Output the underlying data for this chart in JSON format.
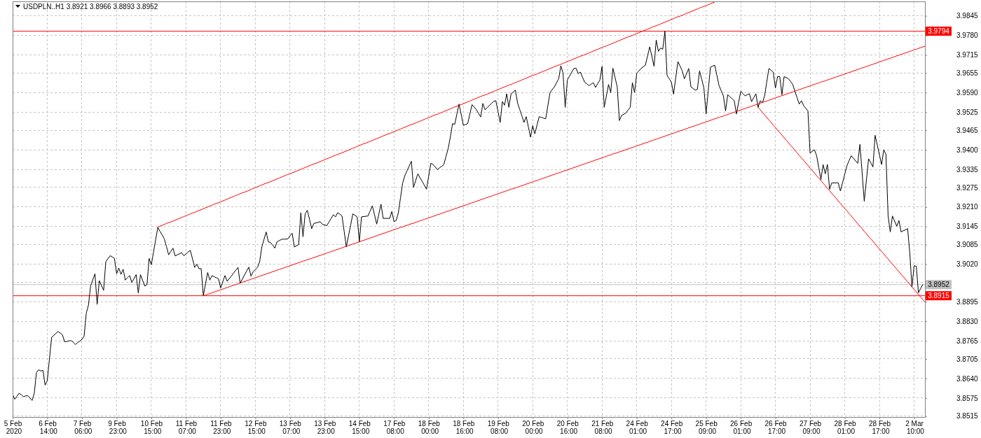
{
  "chart_data": {
    "type": "line",
    "title": "USDPLN..H1 3.8921 3.8966 3.8893 3.8952",
    "categories": [
      "5 Feb 2020",
      null,
      null,
      null,
      null,
      null,
      null,
      null,
      null,
      null,
      null,
      null,
      null,
      null,
      null,
      null,
      "6 Feb 14:00",
      null,
      null,
      null,
      null,
      null,
      null,
      null,
      null,
      null,
      null,
      null,
      null,
      null,
      null,
      null,
      "7 Feb 06:00",
      null,
      null,
      null,
      null,
      null,
      null,
      null,
      null,
      null,
      null,
      null,
      null,
      null,
      null,
      null,
      "9 Feb 23:00",
      null,
      null,
      null,
      null,
      null,
      null,
      null,
      null,
      null,
      null,
      null,
      null,
      null,
      null,
      null,
      "10 Feb 15:00",
      null,
      null,
      null,
      null,
      null,
      null,
      null,
      null,
      null,
      null,
      null,
      null,
      null,
      null,
      null,
      "11 Feb 07:00",
      null,
      null,
      null,
      null,
      null,
      null,
      null,
      null,
      null,
      null,
      null,
      null,
      null,
      null,
      null,
      "11 Feb 23:00",
      null,
      null,
      null,
      null,
      null,
      null,
      null,
      null,
      null,
      null,
      null,
      null,
      null,
      null,
      null,
      "12 Feb 15:00",
      null,
      null,
      null,
      null,
      null,
      null,
      null,
      null,
      null,
      null,
      null,
      null,
      null,
      null,
      null,
      "13 Feb 07:00",
      null,
      null,
      null,
      null,
      null,
      null,
      null,
      null,
      null,
      null,
      null,
      null,
      null,
      null,
      null,
      "13 Feb 23:00",
      null,
      null,
      null,
      null,
      null,
      null,
      null,
      null,
      null,
      null,
      null,
      null,
      null,
      null,
      null,
      "14 Feb 15:00",
      null,
      null,
      null,
      null,
      null,
      null,
      null,
      null,
      null,
      null,
      null,
      null,
      null,
      null,
      null,
      "17 Feb 08:00",
      null,
      null,
      null,
      null,
      null,
      null,
      null,
      null,
      null,
      null,
      null,
      null,
      null,
      null,
      null,
      "18 Feb 00:00",
      null,
      null,
      null,
      null,
      null,
      null,
      null,
      null,
      null,
      null,
      null,
      null,
      null,
      null,
      null,
      "18 Feb 16:00",
      null,
      null,
      null,
      null,
      null,
      null,
      null,
      null,
      null,
      null,
      null,
      null,
      null,
      null,
      null,
      "19 Feb 08:00",
      null,
      null,
      null,
      null,
      null,
      null,
      null,
      null,
      null,
      null,
      null,
      null,
      null,
      null,
      null,
      "20 Feb 00:00",
      null,
      null,
      null,
      null,
      null,
      null,
      null,
      null,
      null,
      null,
      null,
      null,
      null,
      null,
      null,
      "20 Feb 16:00",
      null,
      null,
      null,
      null,
      null,
      null,
      null,
      null,
      null,
      null,
      null,
      null,
      null,
      null,
      null,
      "21 Feb 08:00",
      null,
      null,
      null,
      null,
      null,
      null,
      null,
      null,
      null,
      null,
      null,
      null,
      null,
      null,
      null,
      "24 Feb 01:00",
      null,
      null,
      null,
      null,
      null,
      null,
      null,
      null,
      null,
      null,
      null,
      null,
      null,
      null,
      null,
      "24 Feb 17:00",
      null,
      null,
      null,
      null,
      null,
      null,
      null,
      null,
      null,
      null,
      null,
      null,
      null,
      null,
      null,
      "25 Feb 09:00",
      null,
      null,
      null,
      null,
      null,
      null,
      null,
      null,
      null,
      null,
      null,
      null,
      null,
      null,
      null,
      "26 Feb 01:00",
      null,
      null,
      null,
      null,
      null,
      null,
      null,
      null,
      null,
      null,
      null,
      null,
      null,
      null,
      null,
      "26 Feb 17:00",
      null,
      null,
      null,
      null,
      null,
      null,
      null,
      null,
      null,
      null,
      null,
      null,
      null,
      null,
      null,
      "27 Feb 09:00",
      null,
      null,
      null,
      null,
      null,
      null,
      null,
      null,
      null,
      null,
      null,
      null,
      null,
      null,
      null,
      "28 Feb 01:00",
      null,
      null,
      null,
      null,
      null,
      null,
      null,
      null,
      null,
      null,
      null,
      null,
      null,
      null,
      null,
      "28 Feb 17:00",
      null,
      null,
      null,
      null,
      null,
      null,
      null,
      null,
      null,
      null,
      null,
      null,
      null,
      null,
      null,
      "2 Mar 10:00",
      null,
      null,
      null,
      null,
      null
    ],
    "ylim": [
      3.8512,
      3.9893
    ],
    "yticks": [
      3.8515,
      3.8575,
      {
        "value": 3.864,
        "label": "3.8640"
      },
      3.8705,
      3.8765,
      {
        "value": 3.883,
        "label": "3.8830"
      },
      3.8895,
      {
        "value": 3.896,
        "label": null
      },
      {
        "value": 3.902,
        "label": "3.9020"
      },
      3.9085,
      3.9145,
      {
        "value": 3.921,
        "label": "3.9210"
      },
      3.9275,
      3.9335,
      {
        "value": 3.94,
        "label": "3.9400"
      },
      3.9465,
      3.9525,
      {
        "value": 3.959,
        "label": "3.9590"
      },
      3.9655,
      3.9715,
      {
        "value": 3.978,
        "label": "3.9780"
      },
      3.9845
    ],
    "grid": true,
    "series": [
      {
        "color": "#000000",
        "values": [
          3.8587,
          3.8571,
          3.8581,
          3.8591,
          3.8586,
          3.858,
          3.8582,
          3.8583,
          3.8575,
          3.8567,
          3.8591,
          3.866,
          3.8669,
          3.8665,
          3.8667,
          3.8618,
          3.8633,
          3.8705,
          3.8777,
          3.8783,
          3.879,
          3.8796,
          3.8791,
          3.8785,
          3.8762,
          3.8763,
          3.8765,
          3.8766,
          3.876,
          3.8753,
          3.8759,
          3.8764,
          3.877,
          3.8781,
          3.8857,
          3.8884,
          3.8948,
          3.8968,
          3.8988,
          3.8886,
          3.8965,
          3.8949,
          3.8933,
          3.9028,
          3.9038,
          3.9048,
          3.9044,
          3.9039,
          3.8988,
          3.9007,
          3.8986,
          3.9003,
          3.8967,
          3.8975,
          3.8982,
          3.8959,
          3.8972,
          3.8985,
          3.8924,
          3.8985,
          3.8966,
          3.8947,
          3.8952,
          3.9039,
          3.9018,
          3.9059,
          3.9101,
          3.9142,
          3.9129,
          3.9117,
          3.9104,
          3.9078,
          3.9051,
          3.9062,
          3.9073,
          3.9047,
          3.9051,
          3.9054,
          3.9058,
          3.9048,
          3.9054,
          3.906,
          3.9066,
          3.9038,
          3.9009,
          3.902,
          3.9005,
          3.9005,
          3.8915,
          3.8954,
          3.8992,
          3.8967,
          3.8982,
          3.8978,
          3.8975,
          3.8971,
          3.8941,
          3.8962,
          3.8982,
          3.8963,
          3.8972,
          3.8981,
          3.8991,
          3.9,
          3.9009,
          3.8957,
          3.897,
          3.8984,
          3.8997,
          3.901,
          3.898,
          3.8995,
          3.9002,
          3.9009,
          3.9028,
          3.9077,
          3.9102,
          3.9127,
          3.9094,
          3.9092,
          3.9083,
          3.9073,
          3.9094,
          3.9098,
          3.9102,
          3.9103,
          3.9103,
          3.9104,
          3.9114,
          3.9123,
          3.9077,
          3.9081,
          3.9085,
          3.9191,
          3.9111,
          3.9187,
          3.9199,
          3.9169,
          3.9138,
          3.9155,
          3.9157,
          3.9159,
          3.9161,
          3.9152,
          3.915,
          3.9148,
          3.916,
          3.9172,
          3.9184,
          3.9177,
          3.9191,
          3.9186,
          3.918,
          3.9129,
          3.9077,
          3.9114,
          3.915,
          3.9187,
          3.9182,
          3.9177,
          3.9094,
          3.9177,
          3.9178,
          3.9179,
          3.918,
          3.9197,
          3.9214,
          3.9184,
          3.9153,
          3.9186,
          3.9219,
          3.9172,
          3.9172,
          3.9172,
          3.9172,
          3.9195,
          3.9161,
          3.9165,
          3.9191,
          3.9241,
          3.929,
          3.9314,
          3.933,
          3.9346,
          3.9362,
          3.9275,
          3.9298,
          3.932,
          3.9307,
          3.9295,
          3.9282,
          3.9269,
          3.9312,
          3.9355,
          3.9351,
          3.9343,
          3.9334,
          3.934,
          3.9345,
          3.9351,
          3.9378,
          3.9404,
          3.9442,
          3.9487,
          3.9484,
          3.9518,
          3.9552,
          3.9517,
          3.9481,
          3.9484,
          3.9487,
          3.9519,
          3.955,
          3.9542,
          3.9533,
          3.9521,
          3.9509,
          3.9554,
          3.9533,
          3.954,
          3.9547,
          3.9554,
          3.9561,
          3.9563,
          3.9527,
          3.9491,
          3.956,
          3.9548,
          3.9586,
          3.9541,
          3.9586,
          3.9592,
          3.9598,
          3.9556,
          3.9534,
          3.9513,
          3.9491,
          3.951,
          3.9476,
          3.9442,
          3.948,
          3.9453,
          3.9482,
          3.951,
          3.9508,
          3.9505,
          3.9503,
          3.9547,
          3.959,
          3.96,
          3.9609,
          3.9623,
          3.9636,
          3.9679,
          3.9654,
          3.9541,
          3.9632,
          3.9645,
          3.9658,
          3.967,
          3.9671,
          3.9653,
          3.9658,
          3.9641,
          3.9624,
          3.9619,
          3.9613,
          3.9618,
          3.9623,
          3.9607,
          3.962,
          3.9632,
          3.9677,
          3.9541,
          3.9579,
          3.9617,
          3.959,
          3.9671,
          3.964,
          3.9609,
          3.9497,
          3.9514,
          3.9518,
          3.9522,
          3.9532,
          3.9541,
          3.9623,
          3.959,
          3.9654,
          3.9662,
          3.967,
          3.9676,
          3.9681,
          3.9712,
          3.9742,
          3.971,
          3.9677,
          3.9765,
          3.9727,
          3.9738,
          3.9734,
          3.9794,
          3.9647,
          3.9636,
          3.9624,
          3.9585,
          3.9639,
          3.9693,
          3.9678,
          3.9662,
          3.9636,
          3.9653,
          3.967,
          3.9609,
          3.9604,
          3.9598,
          3.9601,
          3.9662,
          3.9634,
          3.9605,
          3.9519,
          3.9597,
          3.9674,
          3.9678,
          3.9681,
          3.9647,
          3.9613,
          3.9596,
          3.9579,
          3.9529,
          3.9583,
          3.9576,
          3.957,
          3.9563,
          3.9519,
          3.9557,
          3.9594,
          3.9587,
          3.9579,
          3.9583,
          3.9586,
          3.956,
          3.9573,
          3.9586,
          3.9541,
          3.9563,
          3.9556,
          3.9579,
          3.9625,
          3.967,
          3.9664,
          3.9658,
          3.9605,
          3.9643,
          3.9643,
          3.9583,
          3.9643,
          3.964,
          3.9636,
          3.9627,
          3.9617,
          3.9594,
          3.9573,
          3.9552,
          3.9563,
          3.9547,
          3.9538,
          3.9529,
          3.9389,
          3.9395,
          3.94,
          3.9381,
          3.9341,
          3.9301,
          3.9351,
          3.932,
          3.9351,
          3.9269,
          3.929,
          3.929,
          3.929,
          3.929,
          3.9263,
          3.9291,
          3.9319,
          3.9347,
          3.9364,
          3.938,
          3.9372,
          3.9363,
          3.9355,
          3.9418,
          3.9324,
          3.9229,
          3.93,
          3.937,
          3.9357,
          3.9343,
          3.9448,
          3.9416,
          3.9383,
          3.9351,
          3.94,
          3.9385,
          3.918,
          3.9127,
          3.918,
          3.9163,
          3.9146,
          3.9165,
          3.9127,
          3.9131,
          3.9134,
          3.9138,
          3.9058,
          3.8944,
          3.9015,
          3.9013,
          3.8925,
          3.8939,
          3.8952,
          null
        ]
      },
      {
        "type": "line",
        "color": "#ff0000",
        "values": [
          null,
          null,
          null,
          null,
          null,
          null,
          null,
          null,
          null,
          null,
          null,
          null,
          null,
          null,
          null,
          null,
          null,
          null,
          null,
          null,
          null,
          null,
          null,
          null,
          null,
          null,
          null,
          null,
          null,
          null,
          null,
          null,
          null,
          null,
          null,
          null,
          null,
          null,
          null,
          null,
          null,
          null,
          null,
          null,
          null,
          null,
          null,
          null,
          null,
          null,
          null,
          null,
          null,
          null,
          null,
          null,
          null,
          null,
          null,
          null,
          null,
          null,
          null,
          null,
          null,
          null,
          null,
          3.9143,
          3.9146,
          3.9149,
          3.9152,
          3.9155,
          3.9158,
          3.916,
          3.9163,
          3.9166,
          3.9169,
          3.9172,
          3.9175,
          3.9178,
          3.9181,
          3.9184,
          3.9187,
          3.919,
          3.9192,
          3.9195,
          3.9198,
          3.9201,
          3.9204,
          3.9207,
          3.921,
          3.9213,
          3.9216,
          3.9219,
          3.9222,
          3.9224,
          3.9227,
          3.923,
          3.9233,
          3.9236,
          3.9239,
          3.9242,
          3.9245,
          3.9248,
          3.9251,
          3.9254,
          3.9257,
          3.9259,
          3.9262,
          3.9265,
          3.9268,
          3.9271,
          3.9274,
          3.9277,
          3.928,
          3.9283,
          3.9286,
          3.9289,
          3.9291,
          3.9294,
          3.9297,
          3.93,
          3.9303,
          3.9306,
          3.9309,
          3.9312,
          3.9315,
          3.9318,
          3.9321,
          3.9323,
          3.9326,
          3.9329,
          3.9332,
          3.9335,
          3.9338,
          3.9341,
          3.9344,
          3.9347,
          3.935,
          3.9353,
          3.9355,
          3.9358,
          3.9361,
          3.9364,
          3.9367,
          3.937,
          3.9373,
          3.9376,
          3.9379,
          3.9382,
          3.9385,
          3.9387,
          3.939,
          3.9393,
          3.9396,
          3.9399,
          3.9402,
          3.9405,
          3.9408,
          3.9411,
          3.9414,
          3.9417,
          3.942,
          3.9422,
          3.9425,
          3.9428,
          3.9431,
          3.9434,
          3.9437,
          3.944,
          3.9443,
          3.9446,
          3.9449,
          3.9452,
          3.9454,
          3.9457,
          3.946,
          3.9463,
          3.9466,
          3.9469,
          3.9472,
          3.9475,
          3.9478,
          3.9481,
          3.9484,
          3.9486,
          3.9489,
          3.9492,
          3.9495,
          3.9498,
          3.9501,
          3.9504,
          3.9507,
          3.951,
          3.9513,
          3.9516,
          3.9518,
          3.9521,
          3.9524,
          3.9527,
          3.953,
          3.9533,
          3.9536,
          3.9539,
          3.9542,
          3.9545,
          3.9548,
          3.955,
          3.9553,
          3.9556,
          3.9559,
          3.9562,
          3.9565,
          3.9568,
          3.9571,
          3.9574,
          3.9577,
          3.958,
          3.9582,
          3.9585,
          3.9588,
          3.9591,
          3.9594,
          3.9597,
          3.96,
          3.9603,
          3.9606,
          3.9609,
          3.9612,
          3.9615,
          3.9617,
          3.962,
          3.9623,
          3.9626,
          3.9629,
          3.9632,
          3.9635,
          3.9638,
          3.9641,
          3.9644,
          3.9647,
          3.9649,
          3.9652,
          3.9655,
          3.9658,
          3.9661,
          3.9664,
          3.9667,
          3.967,
          3.9673,
          3.9676,
          3.9679,
          3.9681,
          3.9684,
          3.9687,
          3.969,
          3.9693,
          3.9696,
          3.9699,
          3.9702,
          3.9705,
          3.9708,
          3.9711,
          3.9713,
          3.9716,
          3.9719,
          3.9722,
          3.9725,
          3.9728,
          3.9731,
          3.9734,
          3.9737,
          3.974,
          3.9743,
          3.9745,
          3.9748,
          3.9751,
          3.9754,
          3.9757,
          3.976,
          3.9763,
          3.9766,
          3.9769,
          3.9772,
          3.9775,
          3.9777,
          3.978,
          3.9783,
          3.9786,
          3.9789,
          3.9792,
          3.9795,
          3.9798,
          3.9801,
          3.9804,
          3.9807,
          3.981,
          3.9812,
          3.9815,
          3.9818,
          3.9821,
          3.9824,
          3.9827,
          3.983,
          3.9833,
          3.9836,
          3.9839,
          3.9842,
          3.9844,
          3.9847,
          3.985,
          3.9853,
          3.9856,
          3.9859,
          3.9862,
          3.9865,
          3.9868,
          3.9871,
          3.9874,
          3.9876,
          3.9879,
          3.9882,
          3.9885,
          3.9888,
          3.9891,
          null,
          null,
          null,
          null,
          null,
          null,
          null,
          null,
          null,
          null,
          null,
          null,
          null,
          null,
          null,
          null,
          null,
          null,
          null,
          null,
          null,
          null,
          null,
          null,
          null,
          null,
          null,
          null,
          null,
          null,
          null,
          null,
          null,
          null,
          null,
          null,
          null,
          null,
          null,
          null,
          null,
          null,
          null,
          null,
          null,
          null,
          null,
          null,
          null,
          null,
          null,
          null,
          null,
          null,
          null,
          null,
          null,
          null,
          null,
          null,
          null,
          null,
          null,
          null,
          null,
          null,
          null,
          null,
          null,
          null,
          null,
          null,
          null,
          null,
          null,
          null,
          null,
          null,
          null,
          null,
          null,
          null,
          null,
          null,
          null,
          null,
          null,
          null,
          null,
          null,
          null,
          null,
          null,
          null,
          null,
          null,
          null
        ]
      },
      {
        "type": "line",
        "color": "#ff0000",
        "values": [
          null,
          null,
          null,
          null,
          null,
          null,
          null,
          null,
          null,
          null,
          null,
          null,
          null,
          null,
          null,
          null,
          null,
          null,
          null,
          null,
          null,
          null,
          null,
          null,
          null,
          null,
          null,
          null,
          null,
          null,
          null,
          null,
          null,
          null,
          null,
          null,
          null,
          null,
          null,
          null,
          null,
          null,
          null,
          null,
          null,
          null,
          null,
          null,
          null,
          null,
          null,
          null,
          null,
          null,
          null,
          null,
          null,
          null,
          null,
          null,
          null,
          null,
          null,
          null,
          null,
          null,
          null,
          null,
          null,
          null,
          null,
          null,
          null,
          null,
          null,
          null,
          null,
          null,
          null,
          null,
          null,
          null,
          null,
          null,
          null,
          null,
          null,
          null,
          3.8915,
          3.8917,
          3.892,
          3.8922,
          3.8925,
          3.8927,
          3.893,
          3.8932,
          3.8935,
          3.8937,
          3.894,
          3.8942,
          3.8945,
          3.8947,
          3.895,
          3.8952,
          3.8955,
          3.8957,
          3.896,
          3.8962,
          3.8965,
          3.8967,
          3.897,
          3.8972,
          3.8975,
          3.8977,
          3.898,
          3.8982,
          3.8985,
          3.8987,
          3.899,
          3.8992,
          3.8995,
          3.8997,
          3.9,
          3.9002,
          3.9005,
          3.9007,
          3.901,
          3.9012,
          3.9015,
          3.9017,
          3.902,
          3.9022,
          3.9025,
          3.9027,
          3.903,
          3.9032,
          3.9035,
          3.9037,
          3.9039,
          3.9042,
          3.9044,
          3.9047,
          3.9049,
          3.9052,
          3.9054,
          3.9057,
          3.9059,
          3.9062,
          3.9064,
          3.9067,
          3.9069,
          3.9072,
          3.9074,
          3.9077,
          3.9079,
          3.9082,
          3.9084,
          3.9087,
          3.9089,
          3.9092,
          3.9094,
          3.9097,
          3.9099,
          3.9102,
          3.9104,
          3.9107,
          3.9109,
          3.9112,
          3.9114,
          3.9117,
          3.9119,
          3.9122,
          3.9124,
          3.9127,
          3.9129,
          3.9132,
          3.9134,
          3.9137,
          3.9139,
          3.9142,
          3.9144,
          3.9147,
          3.9149,
          3.9152,
          3.9154,
          3.9156,
          3.9159,
          3.9161,
          3.9164,
          3.9166,
          3.9169,
          3.9171,
          3.9174,
          3.9176,
          3.9179,
          3.9181,
          3.9184,
          3.9186,
          3.9189,
          3.9191,
          3.9194,
          3.9196,
          3.9199,
          3.9201,
          3.9204,
          3.9206,
          3.9209,
          3.9211,
          3.9214,
          3.9216,
          3.9219,
          3.9221,
          3.9224,
          3.9226,
          3.9229,
          3.9231,
          3.9234,
          3.9236,
          3.9239,
          3.9241,
          3.9244,
          3.9246,
          3.9249,
          3.9251,
          3.9254,
          3.9256,
          3.9259,
          3.9261,
          3.9264,
          3.9266,
          3.9269,
          3.9271,
          3.9273,
          3.9276,
          3.9278,
          3.9281,
          3.9283,
          3.9286,
          3.9288,
          3.9291,
          3.9293,
          3.9296,
          3.9298,
          3.9301,
          3.9303,
          3.9306,
          3.9308,
          3.9311,
          3.9313,
          3.9316,
          3.9318,
          3.9321,
          3.9323,
          3.9326,
          3.9328,
          3.9331,
          3.9333,
          3.9336,
          3.9338,
          3.9341,
          3.9343,
          3.9346,
          3.9348,
          3.9351,
          3.9353,
          3.9356,
          3.9358,
          3.9361,
          3.9363,
          3.9366,
          3.9368,
          3.9371,
          3.9373,
          3.9376,
          3.9378,
          3.9381,
          3.9383,
          3.9386,
          3.9388,
          3.939,
          3.9393,
          3.9395,
          3.9398,
          3.94,
          3.9403,
          3.9405,
          3.9408,
          3.941,
          3.9413,
          3.9415,
          3.9418,
          3.942,
          3.9423,
          3.9425,
          3.9428,
          3.943,
          3.9433,
          3.9435,
          3.9438,
          3.944,
          3.9443,
          3.9445,
          3.9448,
          3.945,
          3.9453,
          3.9455,
          3.9458,
          3.946,
          3.9463,
          3.9465,
          3.9468,
          3.947,
          3.9473,
          3.9475,
          3.9478,
          3.948,
          3.9483,
          3.9485,
          3.9488,
          3.949,
          3.9493,
          3.9495,
          3.9498,
          3.95,
          3.9503,
          3.9505,
          3.9508,
          3.951,
          3.9512,
          3.9515,
          3.9517,
          3.952,
          3.9522,
          3.9525,
          3.9527,
          3.953,
          3.9532,
          3.9535,
          3.9537,
          3.954,
          3.9542,
          3.9545,
          3.9547,
          3.955,
          3.9552,
          3.9555,
          3.9557,
          3.956,
          3.9562,
          3.9565,
          3.9567,
          3.957,
          3.9572,
          3.9575,
          3.9577,
          3.958,
          3.9582,
          3.9585,
          3.9587,
          3.959,
          3.9592,
          3.9595,
          3.9597,
          3.96,
          3.9602,
          3.9605,
          3.9607,
          3.961,
          3.9612,
          3.9615,
          3.9617,
          3.962,
          3.9622,
          3.9625,
          3.9627,
          3.9629,
          3.9632,
          3.9634,
          3.9637,
          3.9639,
          3.9642,
          3.9644,
          3.9647,
          3.9649,
          3.9652,
          3.9654,
          3.9657,
          3.9659,
          3.9662,
          3.9664,
          3.9667,
          3.9669,
          3.9672,
          3.9674,
          3.9677,
          3.9679,
          3.9682,
          3.9684,
          3.9687,
          3.9689,
          3.9692,
          3.9694,
          3.9697,
          3.9699,
          3.9702,
          3.9704,
          3.9707,
          3.9709,
          3.9712,
          3.9714,
          3.9717,
          3.9719,
          3.9722,
          3.9724,
          3.9727,
          3.9729,
          3.9732,
          3.9734,
          3.9737,
          3.9739,
          3.9742,
          3.9744
        ]
      },
      {
        "type": "line",
        "color": "#ff0000",
        "values": [
          null,
          null,
          null,
          null,
          null,
          null,
          null,
          null,
          null,
          null,
          null,
          null,
          null,
          null,
          null,
          null,
          null,
          null,
          null,
          null,
          null,
          null,
          null,
          null,
          null,
          null,
          null,
          null,
          null,
          null,
          null,
          null,
          null,
          null,
          null,
          null,
          null,
          null,
          null,
          null,
          null,
          null,
          null,
          null,
          null,
          null,
          null,
          null,
          null,
          null,
          null,
          null,
          null,
          null,
          null,
          null,
          null,
          null,
          null,
          null,
          null,
          null,
          null,
          null,
          null,
          null,
          null,
          null,
          null,
          null,
          null,
          null,
          null,
          null,
          null,
          null,
          null,
          null,
          null,
          null,
          null,
          null,
          null,
          null,
          null,
          null,
          null,
          null,
          null,
          null,
          null,
          null,
          null,
          null,
          null,
          null,
          null,
          null,
          null,
          null,
          null,
          null,
          null,
          null,
          null,
          null,
          null,
          null,
          null,
          null,
          null,
          null,
          null,
          null,
          null,
          null,
          null,
          null,
          null,
          null,
          null,
          null,
          null,
          null,
          null,
          null,
          null,
          null,
          null,
          null,
          null,
          null,
          null,
          null,
          null,
          null,
          null,
          null,
          null,
          null,
          null,
          null,
          null,
          null,
          null,
          null,
          null,
          null,
          null,
          null,
          null,
          null,
          null,
          null,
          null,
          null,
          null,
          null,
          null,
          null,
          null,
          null,
          null,
          null,
          null,
          null,
          null,
          null,
          null,
          null,
          null,
          null,
          null,
          null,
          null,
          null,
          null,
          null,
          null,
          null,
          null,
          null,
          null,
          null,
          null,
          null,
          null,
          null,
          null,
          null,
          null,
          null,
          null,
          null,
          null,
          null,
          null,
          null,
          null,
          null,
          null,
          null,
          null,
          null,
          null,
          null,
          null,
          null,
          null,
          null,
          null,
          null,
          null,
          null,
          null,
          null,
          null,
          null,
          null,
          null,
          null,
          null,
          null,
          null,
          null,
          null,
          null,
          null,
          null,
          null,
          null,
          null,
          null,
          null,
          null,
          null,
          null,
          null,
          null,
          null,
          null,
          null,
          null,
          null,
          null,
          null,
          null,
          null,
          null,
          null,
          null,
          null,
          null,
          null,
          null,
          null,
          null,
          null,
          null,
          null,
          null,
          null,
          null,
          null,
          null,
          null,
          null,
          null,
          null,
          null,
          null,
          null,
          null,
          null,
          null,
          null,
          null,
          null,
          null,
          null,
          null,
          null,
          null,
          null,
          null,
          null,
          null,
          null,
          null,
          null,
          null,
          null,
          null,
          null,
          null,
          null,
          null,
          null,
          null,
          null,
          null,
          null,
          null,
          null,
          null,
          null,
          null,
          null,
          null,
          null,
          null,
          null,
          null,
          null,
          null,
          null,
          null,
          null,
          null,
          null,
          null,
          null,
          null,
          null,
          null,
          null,
          null,
          null,
          null,
          null,
          null,
          null,
          null,
          null,
          null,
          null,
          null,
          null,
          null,
          null,
          null,
          null,
          null,
          null,
          3.9541,
          3.9533,
          3.9524,
          3.9516,
          3.9507,
          3.9499,
          3.9491,
          3.9482,
          3.9474,
          3.9465,
          3.9457,
          3.9449,
          3.944,
          3.9432,
          3.9423,
          3.9415,
          3.9407,
          3.9398,
          3.939,
          3.9381,
          3.9373,
          3.9365,
          3.9356,
          3.9348,
          3.9339,
          3.9331,
          3.9323,
          3.9314,
          3.9306,
          3.9297,
          3.9289,
          3.9281,
          3.9272,
          3.9264,
          3.9255,
          3.9247,
          3.9239,
          3.923,
          3.9222,
          3.9213,
          3.9205,
          3.9197,
          3.9188,
          3.918,
          3.9171,
          3.9163,
          3.9154,
          3.9146,
          3.9138,
          3.9129,
          3.9121,
          3.9112,
          3.9104,
          3.9096,
          3.9087,
          3.9079,
          3.907,
          3.9062,
          3.9054,
          3.9045,
          3.9037,
          3.9028,
          3.902,
          3.9012,
          3.9003,
          3.8995,
          3.8986,
          3.8978,
          3.897,
          3.8961,
          3.8953,
          3.8944,
          3.8936,
          3.8928,
          3.8919,
          3.8911,
          3.8902,
          3.8894
        ]
      }
    ],
    "ref_lines": [
      {
        "axis": "y",
        "value": 3.9794,
        "label": "3.9794",
        "color": "#ff0000"
      },
      {
        "axis": "y",
        "value": 3.8952,
        "label": "3.8952",
        "color": "#c0c0c0"
      },
      {
        "axis": "y",
        "value": 3.8915,
        "label": "3.8915",
        "color": "#ff0000"
      }
    ]
  }
}
